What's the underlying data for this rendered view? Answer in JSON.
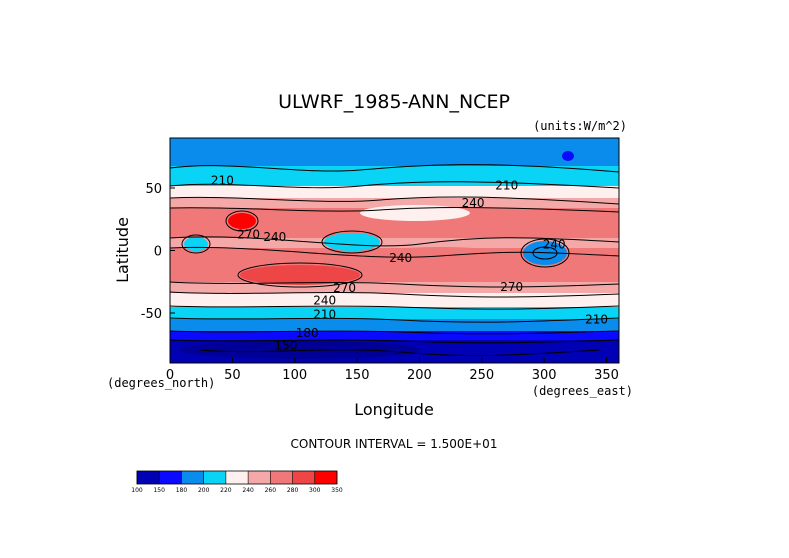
{
  "chart_data": {
    "type": "heatmap",
    "title": "ULWRF_1985-ANN_NCEP",
    "units": "(units:W/m^2)",
    "xlabel": "Longitude",
    "ylabel": "Latitude",
    "x_unit_label": "(degrees_east)",
    "y_unit_label": "(degrees_north)",
    "xlim": [
      0,
      360
    ],
    "ylim": [
      -90,
      90
    ],
    "x_ticks": [
      0,
      50,
      100,
      150,
      200,
      250,
      300,
      350
    ],
    "y_ticks": [
      50,
      0,
      -50
    ],
    "contour_interval_text": "CONTOUR INTERVAL = 1.500E+01",
    "contour_labels": [
      {
        "text": "210",
        "lon": 42,
        "lat": 56
      },
      {
        "text": "210",
        "lon": 270,
        "lat": 52
      },
      {
        "text": "240",
        "lon": 243,
        "lat": 38
      },
      {
        "text": "270",
        "lon": 63,
        "lat": 13
      },
      {
        "text": "240",
        "lon": 84,
        "lat": 11
      },
      {
        "text": "240",
        "lon": 185,
        "lat": -6
      },
      {
        "text": "240",
        "lon": 308,
        "lat": 5
      },
      {
        "text": "270",
        "lon": 140,
        "lat": -30
      },
      {
        "text": "270",
        "lon": 274,
        "lat": -29
      },
      {
        "text": "240",
        "lon": 124,
        "lat": -40
      },
      {
        "text": "210",
        "lon": 124,
        "lat": -51
      },
      {
        "text": "210",
        "lon": 342,
        "lat": -55
      },
      {
        "text": "180",
        "lon": 110,
        "lat": -66
      },
      {
        "text": "150",
        "lon": 93,
        "lat": -76
      }
    ],
    "colorbar": {
      "levels": [
        "100",
        "150",
        "180",
        "200",
        "220",
        "240",
        "260",
        "280",
        "300",
        "350"
      ],
      "colors": [
        "#0000b4",
        "#0a0aff",
        "#0a8ced",
        "#0ad4f5",
        "#fff0f0",
        "#f5a8a8",
        "#f07878",
        "#ee4646",
        "#ff0000"
      ]
    }
  }
}
